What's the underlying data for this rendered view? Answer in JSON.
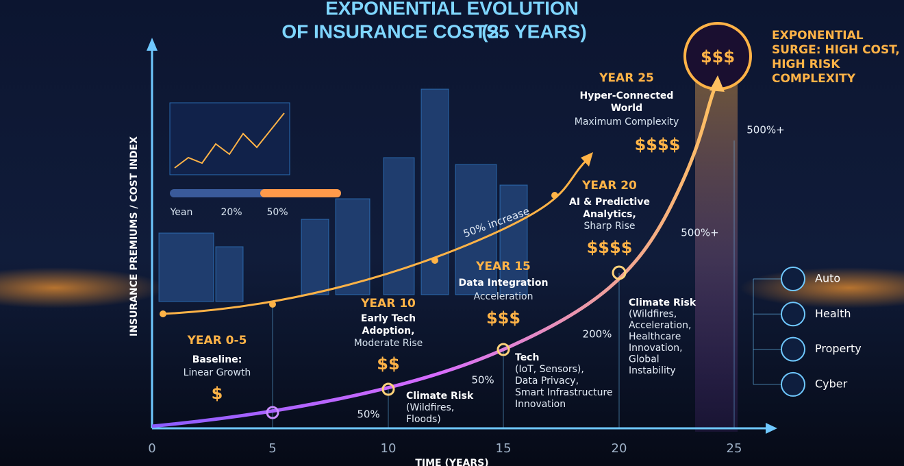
{
  "title": {
    "line1": "EXPONENTIAL EVOLUTION",
    "line2": "OF INSURANCE COSTS",
    "line2_suffix": "(25 YEARS)"
  },
  "y_axis_label": "INSURANCE PREMIUMS / COST INDEX",
  "x_axis_label": "TIME (YEARS)",
  "x_ticks": [
    "0",
    "5",
    "10",
    "15",
    "20",
    "25"
  ],
  "mini_labels": [
    "Yean",
    "20%",
    "50%"
  ],
  "stages": [
    {
      "year": "YEAR 0-5",
      "lines": [
        "Baseline:",
        "Linear Growth"
      ],
      "cost": "$"
    },
    {
      "year": "YEAR 10",
      "lines": [
        "Early Tech",
        "Adoption,",
        "Moderate Rise"
      ],
      "cost": "$$"
    },
    {
      "year": "YEAR 15",
      "lines": [
        "Data Integration",
        "Acceleration"
      ],
      "cost": "$$$"
    },
    {
      "year": "YEAR 20",
      "lines": [
        "AI & Predictive",
        "Analytics,",
        "Sharp Rise"
      ],
      "cost": "$$$$"
    },
    {
      "year": "YEAR 25",
      "lines": [
        "Hyper-Connected",
        "World",
        "Maximum Complexity"
      ],
      "cost": "$$$$"
    }
  ],
  "risks": [
    {
      "lines": [
        "Climate Risk",
        "(Wildfires,",
        "Floods)"
      ]
    },
    {
      "lines": [
        "Tech",
        "(IoT, Sensors),",
        "Data Privacy,",
        "Smart Infrastructure",
        "Innovation"
      ]
    },
    {
      "lines": [
        "Climate Risk",
        "(Wildfires,",
        "Acceleration,",
        "Healthcare",
        "Innovation,",
        "Global",
        "Instability"
      ]
    }
  ],
  "percent_labels": [
    "50%",
    "50%",
    "200%",
    "500%+",
    "500%+"
  ],
  "increase_label": "50% increase",
  "surge": {
    "symbol": "$$$",
    "lines": [
      "EXPONENTIAL",
      "SURGE: HIGH COST,",
      "HIGH RISK",
      "COMPLEXITY"
    ]
  },
  "categories": [
    "Auto",
    "Health",
    "Property",
    "Cyber"
  ]
}
